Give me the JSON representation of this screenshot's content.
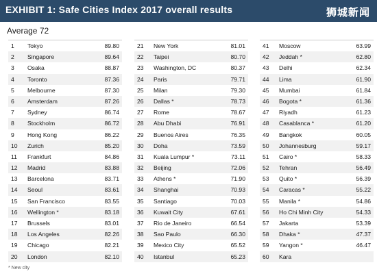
{
  "header": {
    "exhibit": "EXHIBIT 1:",
    "title": "Safe Cities Index 2017 overall results",
    "watermark": "狮城新闻",
    "background": "#2c4b6a"
  },
  "average": "Average 72",
  "columns": [
    [
      {
        "rank": "1",
        "city": "Tokyo",
        "score": "89.80"
      },
      {
        "rank": "2",
        "city": "Singapore",
        "score": "89.64"
      },
      {
        "rank": "3",
        "city": "Osaka",
        "score": "88.87"
      },
      {
        "rank": "4",
        "city": "Toronto",
        "score": "87.36"
      },
      {
        "rank": "5",
        "city": "Melbourne",
        "score": "87.30"
      },
      {
        "rank": "6",
        "city": "Amsterdam",
        "score": "87.26"
      },
      {
        "rank": "7",
        "city": "Sydney",
        "score": "86.74"
      },
      {
        "rank": "8",
        "city": "Stockholm",
        "score": "86.72"
      },
      {
        "rank": "9",
        "city": "Hong Kong",
        "score": "86.22"
      },
      {
        "rank": "10",
        "city": "Zurich",
        "score": "85.20"
      },
      {
        "rank": "11",
        "city": "Frankfurt",
        "score": "84.86"
      },
      {
        "rank": "12",
        "city": "Madrid",
        "score": "83.88"
      },
      {
        "rank": "13",
        "city": "Barcelona",
        "score": "83.71"
      },
      {
        "rank": "14",
        "city": "Seoul",
        "score": "83.61"
      },
      {
        "rank": "15",
        "city": "San Francisco",
        "score": "83.55"
      },
      {
        "rank": "16",
        "city": "Wellington *",
        "score": "83.18"
      },
      {
        "rank": "17",
        "city": "Brussels",
        "score": "83.01"
      },
      {
        "rank": "18",
        "city": "Los Angeles",
        "score": "82.26"
      },
      {
        "rank": "19",
        "city": "Chicago",
        "score": "82.21"
      },
      {
        "rank": "20",
        "city": "London",
        "score": "82.10"
      }
    ],
    [
      {
        "rank": "21",
        "city": "New York",
        "score": "81.01"
      },
      {
        "rank": "22",
        "city": "Taipei",
        "score": "80.70"
      },
      {
        "rank": "23",
        "city": "Washington, DC",
        "score": "80.37"
      },
      {
        "rank": "24",
        "city": "Paris",
        "score": "79.71"
      },
      {
        "rank": "25",
        "city": "Milan",
        "score": "79.30"
      },
      {
        "rank": "26",
        "city": "Dallas *",
        "score": "78.73"
      },
      {
        "rank": "27",
        "city": "Rome",
        "score": "78.67"
      },
      {
        "rank": "28",
        "city": "Abu Dhabi",
        "score": "76.91"
      },
      {
        "rank": "29",
        "city": "Buenos Aires",
        "score": "76.35"
      },
      {
        "rank": "30",
        "city": "Doha",
        "score": "73.59"
      },
      {
        "rank": "31",
        "city": "Kuala Lumpur *",
        "score": "73.11"
      },
      {
        "rank": "32",
        "city": "Beijing",
        "score": "72.06"
      },
      {
        "rank": "33",
        "city": "Athens *",
        "score": "71.90"
      },
      {
        "rank": "34",
        "city": "Shanghai",
        "score": "70.93"
      },
      {
        "rank": "35",
        "city": "Santiago",
        "score": "70.03"
      },
      {
        "rank": "36",
        "city": "Kuwait City",
        "score": "67.61"
      },
      {
        "rank": "37",
        "city": "Rio de Janeiro",
        "score": "66.54"
      },
      {
        "rank": "38",
        "city": "Sao Paulo",
        "score": "66.30"
      },
      {
        "rank": "39",
        "city": "Mexico City",
        "score": "65.52"
      },
      {
        "rank": "40",
        "city": "Istanbul",
        "score": "65.23"
      }
    ],
    [
      {
        "rank": "41",
        "city": "Moscow",
        "score": "63.99"
      },
      {
        "rank": "42",
        "city": "Jeddah *",
        "score": "62.80"
      },
      {
        "rank": "43",
        "city": "Delhi",
        "score": "62.34"
      },
      {
        "rank": "44",
        "city": "Lima",
        "score": "61.90"
      },
      {
        "rank": "45",
        "city": "Mumbai",
        "score": "61.84"
      },
      {
        "rank": "46",
        "city": "Bogota *",
        "score": "61.36"
      },
      {
        "rank": "47",
        "city": "Riyadh",
        "score": "61.23"
      },
      {
        "rank": "48",
        "city": "Casablanca *",
        "score": "61.20"
      },
      {
        "rank": "49",
        "city": "Bangkok",
        "score": "60.05"
      },
      {
        "rank": "50",
        "city": "Johannesburg",
        "score": "59.17"
      },
      {
        "rank": "51",
        "city": "Cairo *",
        "score": "58.33"
      },
      {
        "rank": "52",
        "city": "Tehran",
        "score": "56.49"
      },
      {
        "rank": "53",
        "city": "Quito *",
        "score": "56.39"
      },
      {
        "rank": "54",
        "city": "Caracas *",
        "score": "55.22"
      },
      {
        "rank": "55",
        "city": "Manila *",
        "score": "54.86"
      },
      {
        "rank": "56",
        "city": "Ho Chi Minh City",
        "score": "54.33"
      },
      {
        "rank": "57",
        "city": "Jakarta",
        "score": "53.39"
      },
      {
        "rank": "58",
        "city": "Dhaka *",
        "score": "47.37"
      },
      {
        "rank": "59",
        "city": "Yangon *",
        "score": "46.47"
      },
      {
        "rank": "60",
        "city": "Kara",
        "score": ""
      }
    ]
  ],
  "footnote": "* New city"
}
